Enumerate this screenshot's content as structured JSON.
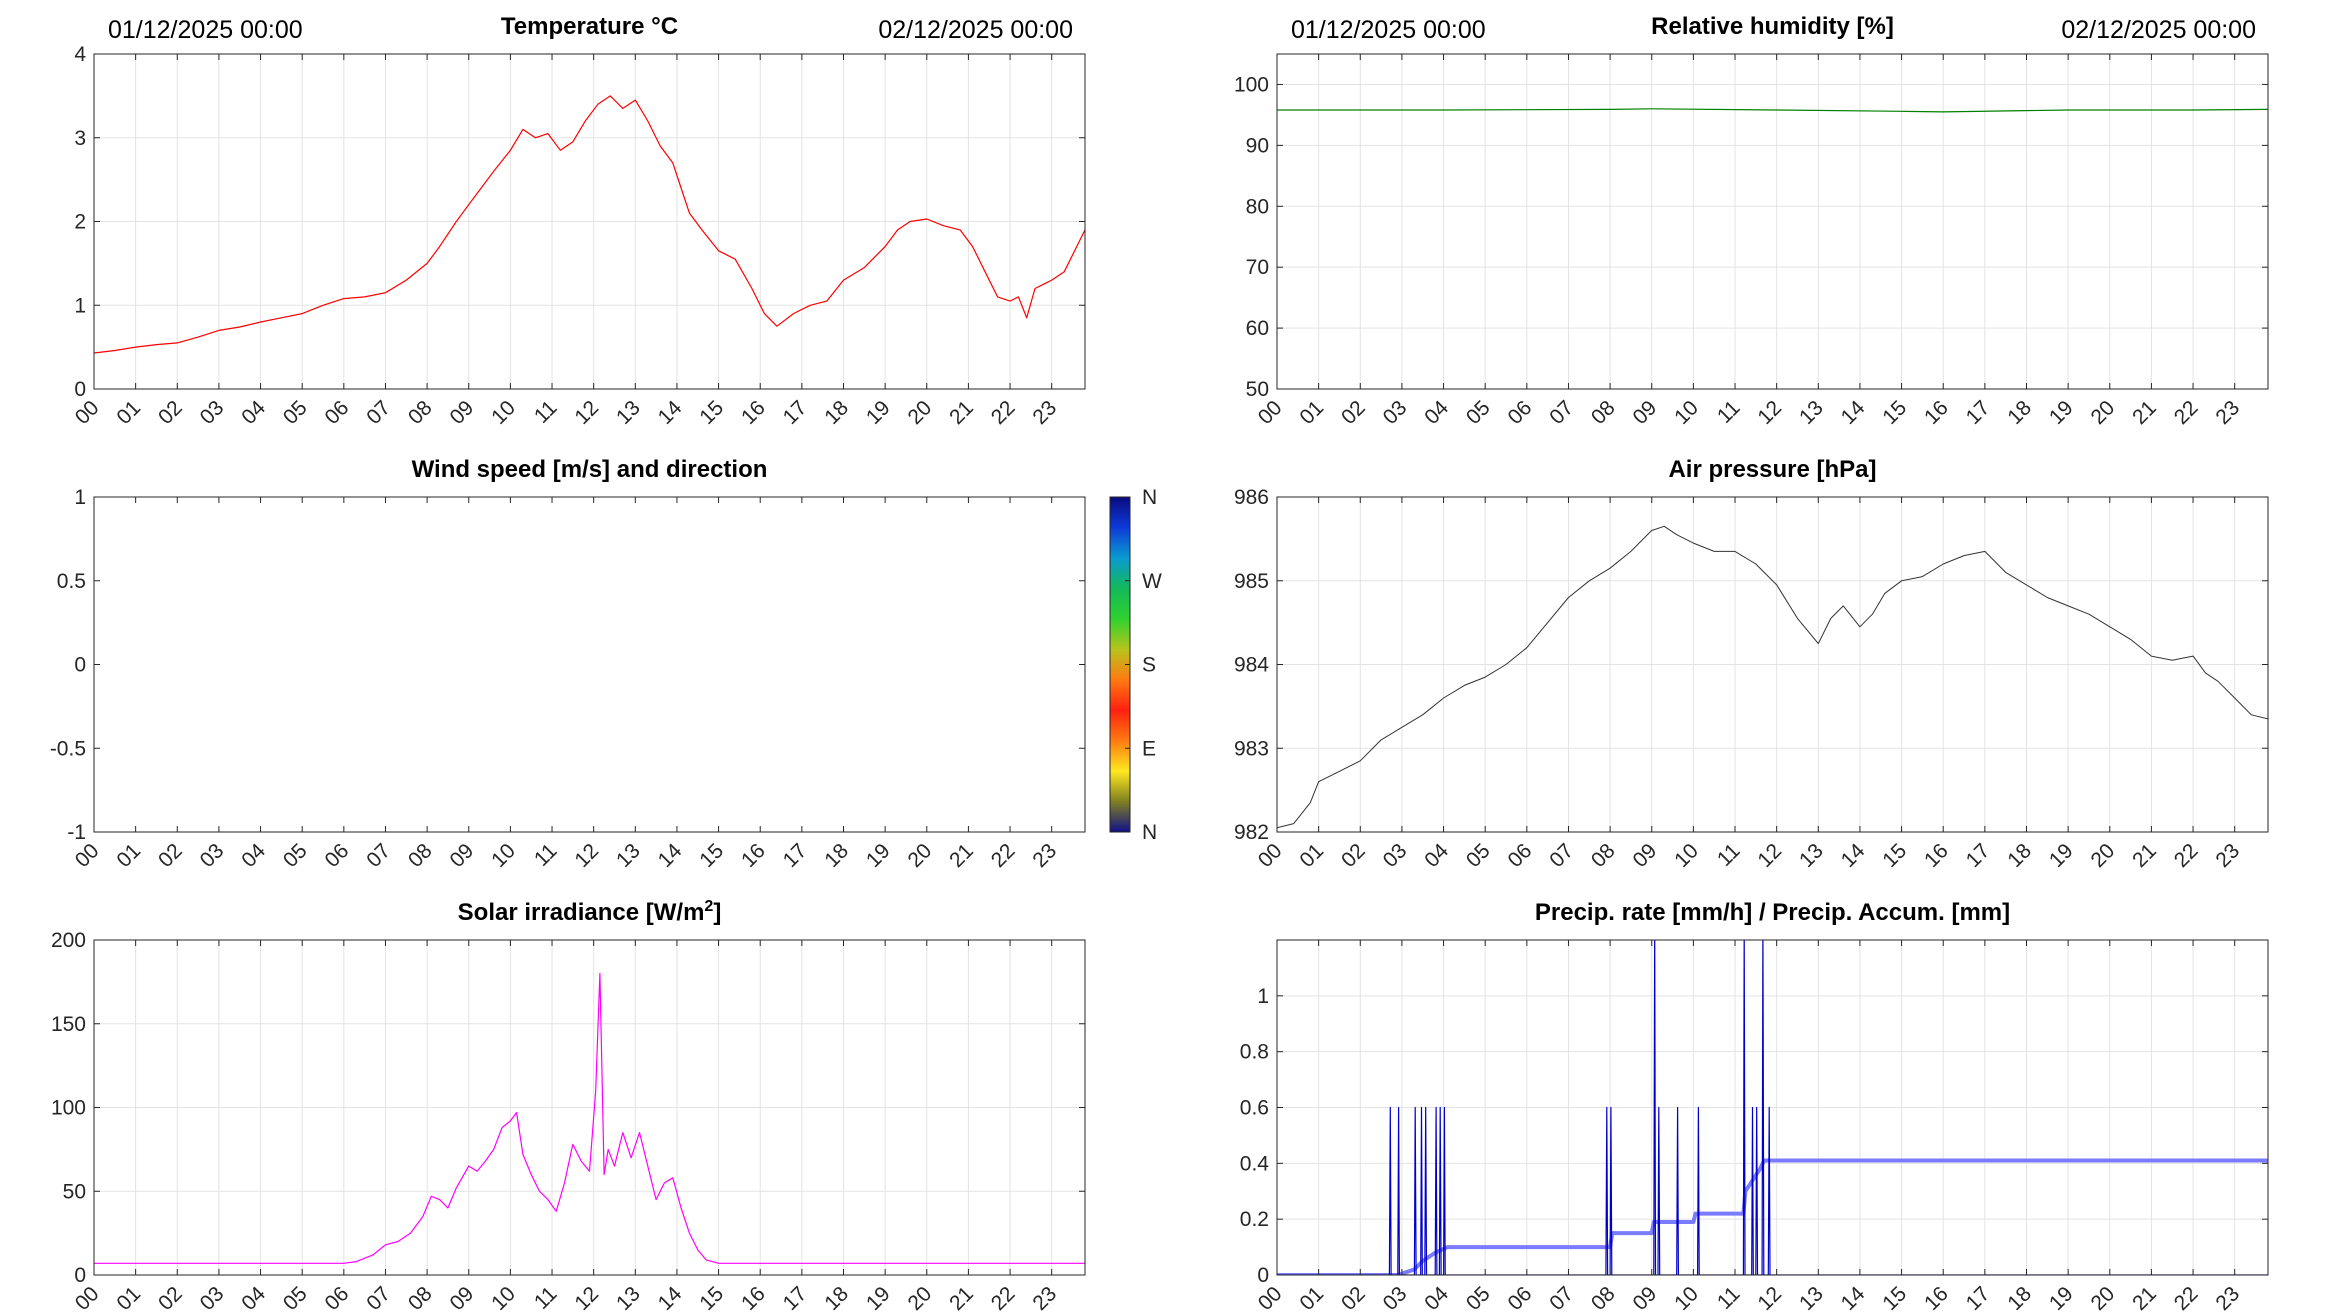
{
  "figure": {
    "hour_ticks": [
      "00",
      "01",
      "02",
      "03",
      "04",
      "05",
      "06",
      "07",
      "08",
      "09",
      "10",
      "11",
      "12",
      "13",
      "14",
      "15",
      "16",
      "17",
      "18",
      "19",
      "20",
      "21",
      "22",
      "23"
    ],
    "date_start": "01/12/2025 00:00",
    "date_end": "02/12/2025 00:00"
  },
  "chart_data": [
    {
      "id": "temperature",
      "type": "line",
      "title": "Temperature °C",
      "xlabel": "",
      "ylabel": "",
      "xlim": [
        0,
        23.8
      ],
      "ylim": [
        0,
        4
      ],
      "yticks": [
        0,
        1,
        2,
        3,
        4
      ],
      "ytick_labels": [
        "0",
        "1",
        "2",
        "3",
        "4"
      ],
      "date_labels": true,
      "grid": true,
      "series": [
        {
          "color": "#ff0000",
          "width": 1.2,
          "x": [
            0,
            0.5,
            1,
            1.5,
            2,
            2.5,
            3,
            3.5,
            4,
            4.5,
            5,
            5.5,
            6,
            6.5,
            7,
            7.5,
            8,
            8.3,
            8.7,
            9,
            9.3,
            9.6,
            10,
            10.3,
            10.6,
            10.9,
            11.2,
            11.5,
            11.8,
            12.1,
            12.4,
            12.7,
            13,
            13.3,
            13.6,
            13.9,
            14.1,
            14.3,
            14.6,
            15,
            15.4,
            15.8,
            16.1,
            16.4,
            16.8,
            17.2,
            17.6,
            18,
            18.5,
            19,
            19.3,
            19.6,
            20,
            20.4,
            20.8,
            21.1,
            21.4,
            21.7,
            22,
            22.2,
            22.4,
            22.6,
            22.8,
            23,
            23.3,
            23.6,
            23.8
          ],
          "y": [
            0.43,
            0.46,
            0.5,
            0.53,
            0.55,
            0.62,
            0.7,
            0.74,
            0.8,
            0.85,
            0.9,
            1.0,
            1.08,
            1.1,
            1.15,
            1.3,
            1.5,
            1.7,
            2.0,
            2.2,
            2.4,
            2.6,
            2.85,
            3.1,
            3.0,
            3.05,
            2.85,
            2.95,
            3.2,
            3.4,
            3.5,
            3.35,
            3.45,
            3.2,
            2.9,
            2.7,
            2.4,
            2.1,
            1.9,
            1.65,
            1.55,
            1.2,
            0.9,
            0.75,
            0.9,
            1.0,
            1.05,
            1.3,
            1.45,
            1.7,
            1.9,
            2.0,
            2.03,
            1.95,
            1.9,
            1.7,
            1.4,
            1.1,
            1.05,
            1.1,
            0.85,
            1.2,
            1.25,
            1.3,
            1.4,
            1.7,
            1.9
          ]
        }
      ]
    },
    {
      "id": "humidity",
      "type": "line",
      "title": "Relative humidity [%]",
      "xlabel": "",
      "ylabel": "",
      "xlim": [
        0,
        23.8
      ],
      "ylim": [
        50,
        105
      ],
      "yticks": [
        50,
        60,
        70,
        80,
        90,
        100
      ],
      "ytick_labels": [
        "50",
        "60",
        "70",
        "80",
        "90",
        "100"
      ],
      "date_labels": true,
      "grid": true,
      "series": [
        {
          "color": "#008000",
          "width": 1.2,
          "x": [
            0,
            4,
            8,
            9,
            12,
            15,
            16,
            19,
            22,
            23.8
          ],
          "y": [
            95.8,
            95.8,
            95.9,
            96.0,
            95.8,
            95.6,
            95.5,
            95.8,
            95.8,
            95.9
          ]
        }
      ]
    },
    {
      "id": "wind",
      "type": "line",
      "title": "Wind speed [m/s] and direction",
      "xlabel": "",
      "ylabel": "",
      "xlim": [
        0,
        23.8
      ],
      "ylim": [
        -1,
        1
      ],
      "yticks": [
        -1,
        -0.5,
        0,
        0.5,
        1
      ],
      "ytick_labels": [
        "-1",
        "-0.5",
        "0",
        "0.5",
        "1"
      ],
      "date_labels": false,
      "grid": false,
      "series": [],
      "colorbar": {
        "labels": [
          "N",
          "W",
          "S",
          "E",
          "N"
        ],
        "colors": [
          "#0a0a80",
          "#0c3ad8",
          "#0a9bd0",
          "#12b85a",
          "#2fd22f",
          "#b8c41c",
          "#ff7a10",
          "#ff2010",
          "#ff7a10",
          "#ffe820",
          "#808020",
          "#10108a"
        ]
      }
    },
    {
      "id": "pressure",
      "type": "line",
      "title": "Air pressure [hPa]",
      "xlabel": "",
      "ylabel": "",
      "xlim": [
        0,
        23.8
      ],
      "ylim": [
        982,
        986
      ],
      "yticks": [
        982,
        983,
        984,
        985,
        986
      ],
      "ytick_labels": [
        "982",
        "983",
        "984",
        "985",
        "986"
      ],
      "date_labels": false,
      "grid": true,
      "series": [
        {
          "color": "#333333",
          "width": 1.0,
          "x": [
            0,
            0.4,
            0.8,
            1,
            1.4,
            2,
            2.5,
            3,
            3.5,
            4,
            4.5,
            5,
            5.5,
            6,
            6.5,
            7,
            7.5,
            8,
            8.5,
            9,
            9.3,
            9.6,
            10,
            10.5,
            11,
            11.5,
            12,
            12.5,
            13,
            13.3,
            13.6,
            14,
            14.3,
            14.6,
            15,
            15.5,
            16,
            16.5,
            17,
            17.5,
            18,
            18.5,
            19,
            19.5,
            20,
            20.5,
            21,
            21.5,
            22,
            22.3,
            22.6,
            23,
            23.4,
            23.8
          ],
          "y": [
            982.05,
            982.1,
            982.35,
            982.6,
            982.7,
            982.85,
            983.1,
            983.25,
            983.4,
            983.6,
            983.75,
            983.85,
            984.0,
            984.2,
            984.5,
            984.8,
            985.0,
            985.15,
            985.35,
            985.6,
            985.65,
            985.55,
            985.45,
            985.35,
            985.35,
            985.2,
            984.95,
            984.55,
            984.25,
            984.55,
            984.7,
            984.45,
            984.6,
            984.85,
            985.0,
            985.05,
            985.2,
            985.3,
            985.35,
            985.1,
            984.95,
            984.8,
            984.7,
            984.6,
            984.45,
            984.3,
            984.1,
            984.05,
            984.1,
            983.9,
            983.8,
            983.6,
            983.4,
            983.35
          ]
        }
      ]
    },
    {
      "id": "solar",
      "type": "line",
      "title": "Solar irradiance [W/m",
      "title_sup": "2",
      "title_end": "]",
      "xlabel": "",
      "ylabel": "",
      "xlim": [
        0,
        23.8
      ],
      "ylim": [
        0,
        200
      ],
      "yticks": [
        0,
        50,
        100,
        150,
        200
      ],
      "ytick_labels": [
        "0",
        "50",
        "100",
        "150",
        "200"
      ],
      "date_labels": false,
      "grid": true,
      "series": [
        {
          "color": "#ff00ff",
          "width": 1.2,
          "x": [
            0,
            3,
            6,
            6.3,
            6.7,
            7,
            7.3,
            7.6,
            7.9,
            8.1,
            8.3,
            8.5,
            8.7,
            9,
            9.2,
            9.4,
            9.6,
            9.8,
            10,
            10.15,
            10.3,
            10.5,
            10.7,
            10.9,
            11.1,
            11.3,
            11.5,
            11.7,
            11.9,
            12.05,
            12.15,
            12.25,
            12.35,
            12.5,
            12.7,
            12.9,
            13.1,
            13.3,
            13.5,
            13.7,
            13.9,
            14.1,
            14.3,
            14.5,
            14.7,
            15,
            16,
            18,
            20,
            22,
            23.8
          ],
          "y": [
            7,
            7,
            7,
            8,
            12,
            18,
            20,
            25,
            35,
            47,
            45,
            40,
            52,
            65,
            62,
            68,
            75,
            88,
            92,
            97,
            72,
            60,
            50,
            45,
            38,
            55,
            78,
            68,
            62,
            110,
            180,
            60,
            75,
            65,
            85,
            70,
            85,
            65,
            45,
            55,
            58,
            40,
            25,
            15,
            9,
            7,
            7,
            7,
            7,
            7,
            7
          ]
        }
      ]
    },
    {
      "id": "precip",
      "type": "line",
      "title": "Precip. rate [mm/h] / Precip. Accum. [mm]",
      "xlabel": "",
      "ylabel": "",
      "xlim": [
        0,
        23.8
      ],
      "ylim": [
        0,
        1.2
      ],
      "yticks": [
        0,
        0.2,
        0.4,
        0.6,
        0.8,
        1
      ],
      "ytick_labels": [
        "0",
        "0.2",
        "0.4",
        "0.6",
        "0.8",
        "1"
      ],
      "date_labels": false,
      "grid": true,
      "series": [
        {
          "color": "#7b7bff",
          "width": 4,
          "x": [
            0,
            2.9,
            3.3,
            3.5,
            3.8,
            4.1,
            4.3,
            7,
            8.0,
            8.05,
            9.0,
            9.05,
            10.0,
            10.05,
            11.2,
            11.25,
            11.6,
            11.7,
            23.8
          ],
          "y": [
            0,
            0,
            0.02,
            0.05,
            0.08,
            0.1,
            0.1,
            0.1,
            0.1,
            0.15,
            0.15,
            0.19,
            0.19,
            0.22,
            0.22,
            0.3,
            0.38,
            0.41,
            0.41
          ]
        },
        {
          "color": "#0000cc",
          "width": 1.2,
          "x": [
            0,
            2.7,
            2.72,
            2.74,
            2.9,
            2.92,
            2.94,
            3.3,
            3.32,
            3.34,
            3.45,
            3.47,
            3.49,
            3.55,
            3.57,
            3.59,
            3.8,
            3.82,
            3.84,
            3.9,
            3.92,
            3.94,
            4.0,
            4.02,
            4.04,
            7.9,
            7.92,
            7.94,
            8.0,
            8.02,
            8.04,
            9.05,
            9.07,
            9.09,
            9.15,
            9.17,
            9.19,
            9.6,
            9.62,
            9.64,
            10.1,
            10.12,
            10.14,
            11.2,
            11.22,
            11.24,
            11.4,
            11.42,
            11.44,
            11.5,
            11.52,
            11.54,
            11.65,
            11.67,
            11.69,
            11.8,
            11.82,
            11.84,
            23.8
          ],
          "y": [
            0,
            0,
            0.6,
            0,
            0,
            0.6,
            0,
            0,
            0.6,
            0,
            0,
            0.6,
            0,
            0,
            0.6,
            0,
            0,
            0.6,
            0,
            0,
            0.6,
            0,
            0,
            0.6,
            0,
            0,
            0.6,
            0,
            0,
            0.6,
            0,
            0,
            1.25,
            0,
            0,
            0.6,
            0,
            0,
            0.6,
            0,
            0,
            0.6,
            0,
            0,
            1.25,
            0,
            0,
            0.6,
            0,
            0,
            0.6,
            0,
            0,
            1.25,
            0,
            0,
            0.6,
            0,
            0
          ]
        }
      ]
    }
  ]
}
